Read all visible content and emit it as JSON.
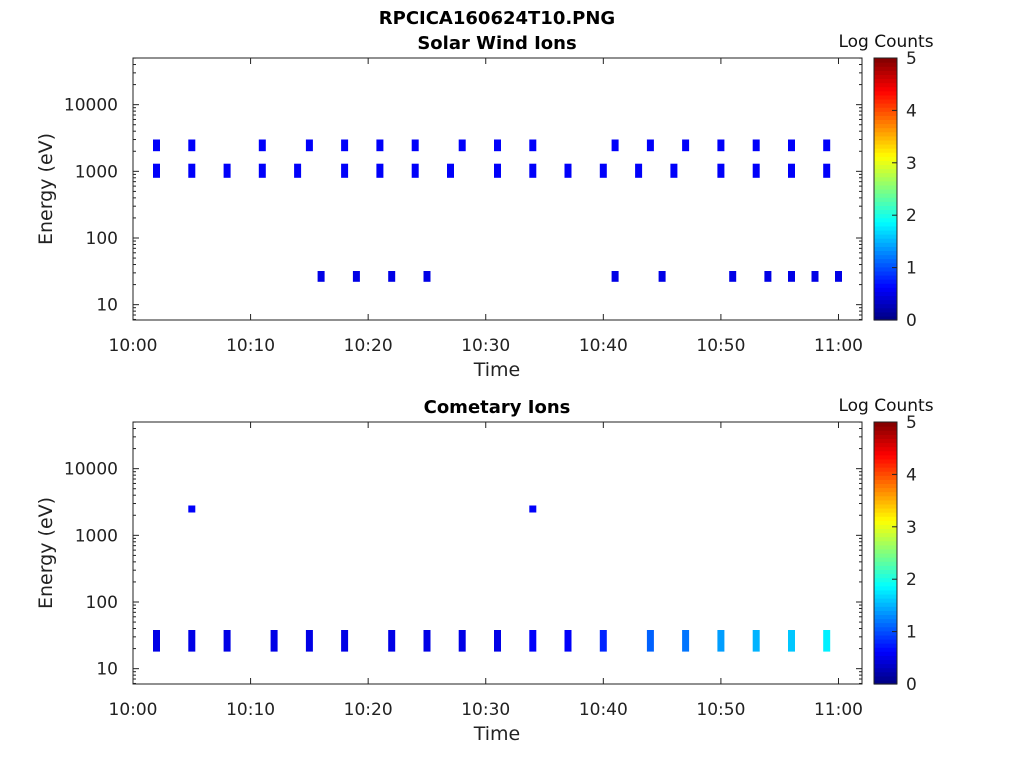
{
  "figure": {
    "title": "RPCICA160624T10.PNG",
    "colormap": "jet"
  },
  "chart_data": [
    {
      "type": "heatmap",
      "title": "Solar Wind Ions",
      "xlabel": "Time",
      "ylabel": "Energy (eV)",
      "x_ticks": [
        "10:00",
        "10:10",
        "10:20",
        "10:30",
        "10:40",
        "10:50",
        "11:00"
      ],
      "y_ticks": [
        "10",
        "100",
        "1000",
        "10000"
      ],
      "y_scale": "log",
      "colorbar_label": "Log Counts",
      "colorbar_ticks": [
        "0",
        "1",
        "2",
        "3",
        "4",
        "5"
      ],
      "clim": [
        0,
        5
      ],
      "bands": [
        {
          "energy_range": [
            800,
            1300
          ],
          "times": [
            "10:02",
            "10:05",
            "10:08",
            "10:11",
            "10:14",
            "10:18",
            "10:21",
            "10:24",
            "10:27",
            "10:31",
            "10:34",
            "10:37",
            "10:40",
            "10:43",
            "10:46",
            "10:50",
            "10:53",
            "10:56",
            "10:59"
          ],
          "log_counts": 0.6
        },
        {
          "energy_range": [
            2000,
            3000
          ],
          "times": [
            "10:02",
            "10:05",
            "10:11",
            "10:15",
            "10:18",
            "10:21",
            "10:24",
            "10:28",
            "10:31",
            "10:34",
            "10:41",
            "10:44",
            "10:47",
            "10:50",
            "10:53",
            "10:56",
            "10:59"
          ],
          "log_counts": 0.6
        },
        {
          "energy_range": [
            22,
            32
          ],
          "times": [
            "10:16",
            "10:19",
            "10:22",
            "10:25",
            "10:41",
            "10:45",
            "10:51",
            "10:54",
            "10:56",
            "10:58",
            "11:00"
          ],
          "log_counts": 0.5
        }
      ]
    },
    {
      "type": "heatmap",
      "title": "Cometary Ions",
      "xlabel": "Time",
      "ylabel": "Energy (eV)",
      "x_ticks": [
        "10:00",
        "10:10",
        "10:20",
        "10:30",
        "10:40",
        "10:50",
        "11:00"
      ],
      "y_ticks": [
        "10",
        "100",
        "1000",
        "10000"
      ],
      "y_scale": "log",
      "colorbar_label": "Log Counts",
      "colorbar_ticks": [
        "0",
        "1",
        "2",
        "3",
        "4",
        "5"
      ],
      "clim": [
        0,
        5
      ],
      "bands": [
        {
          "energy_range": [
            18,
            38
          ],
          "times": [
            "10:02",
            "10:05",
            "10:08",
            "10:12",
            "10:15",
            "10:18",
            "10:22",
            "10:25",
            "10:28",
            "10:31",
            "10:34",
            "10:37",
            "10:40",
            "10:44",
            "10:47",
            "10:50",
            "10:53",
            "10:56",
            "10:59"
          ],
          "log_counts": [
            0.5,
            0.5,
            0.5,
            0.5,
            0.5,
            0.5,
            0.5,
            0.5,
            0.5,
            0.5,
            0.6,
            0.6,
            0.8,
            1.1,
            1.2,
            1.4,
            1.5,
            1.6,
            1.8
          ]
        },
        {
          "energy_range": [
            2200,
            2800
          ],
          "times": [
            "10:05",
            "10:34"
          ],
          "log_counts": 0.6
        }
      ]
    }
  ]
}
